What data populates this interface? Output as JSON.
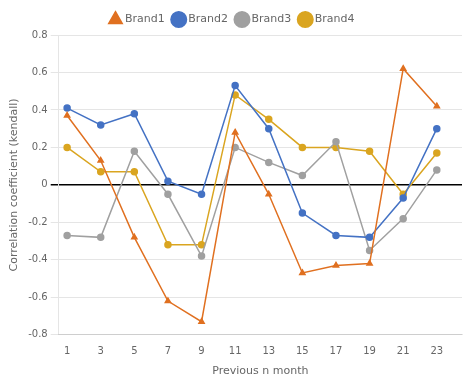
{
  "chart_data": {
    "type": "line",
    "x": [
      1,
      3,
      5,
      7,
      9,
      11,
      13,
      15,
      17,
      19,
      21,
      23
    ],
    "series": [
      {
        "name": "Brand1",
        "color": "#E07020",
        "marker": "triangle",
        "values": [
          0.37,
          0.13,
          -0.28,
          -0.62,
          -0.73,
          0.28,
          -0.05,
          -0.47,
          -0.43,
          -0.42,
          0.62,
          0.42
        ]
      },
      {
        "name": "Brand2",
        "color": "#4472C4",
        "marker": "circle",
        "values": [
          0.41,
          0.32,
          0.38,
          0.02,
          -0.05,
          0.53,
          0.3,
          -0.15,
          -0.27,
          -0.28,
          -0.07,
          0.3
        ]
      },
      {
        "name": "Brand3",
        "color": "#A0A0A0",
        "marker": "circle",
        "values": [
          -0.27,
          -0.28,
          0.18,
          -0.05,
          -0.38,
          0.2,
          0.12,
          0.05,
          0.23,
          -0.35,
          -0.18,
          0.08
        ]
      },
      {
        "name": "Brand4",
        "color": "#DAA520",
        "marker": "circle",
        "values": [
          0.2,
          0.07,
          0.07,
          -0.32,
          -0.32,
          0.48,
          0.35,
          0.2,
          0.2,
          0.18,
          -0.05,
          0.17
        ]
      }
    ],
    "xlabel": "Previous n month",
    "ylabel": "Correlation coefficient (kendall)",
    "xlim": [
      0.5,
      24.5
    ],
    "xticks": [
      1,
      3,
      5,
      7,
      9,
      11,
      13,
      15,
      17,
      19,
      21,
      23
    ],
    "ylim": [
      -0.8,
      0.8
    ],
    "yticks": [
      -0.8,
      -0.6,
      -0.4,
      -0.2,
      0,
      0.2,
      0.4,
      0.6,
      0.8
    ],
    "grid": "y",
    "legend": "top"
  }
}
